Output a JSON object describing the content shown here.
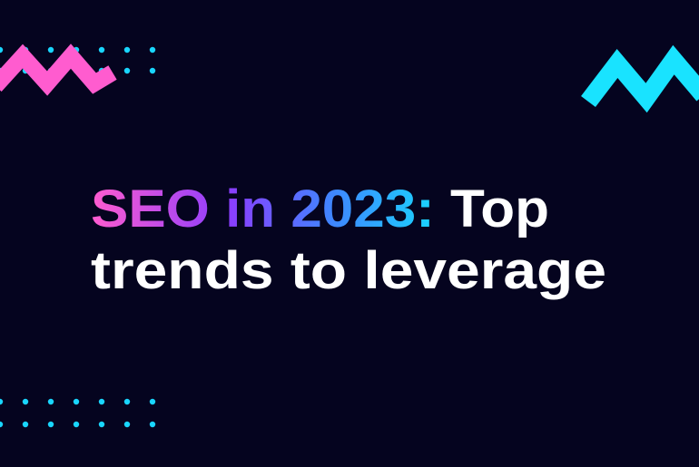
{
  "headline": {
    "highlight": "SEO in 2023:",
    "rest": "Top",
    "line2": "trends to leverage"
  }
}
